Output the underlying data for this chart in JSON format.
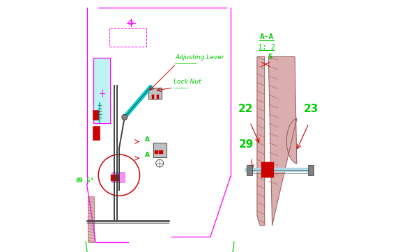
{
  "bg_color": "#ffffff",
  "magenta": "#ff00ff",
  "cyan": "#00cccc",
  "red": "#cc0000",
  "green": "#00cc00",
  "blue_light": "#add8e6",
  "dark_gray": "#404040",
  "medium_gray": "#808080",
  "light_gray": "#c0c0c0",
  "blade_fill": "#d4a0a0",
  "blade_edge": "#884444",
  "hatch_line": "#aa5555",
  "angle_label": "89.5°",
  "label_adjusting_lever": "Adjusting Lever",
  "label_lock_nut": "Lock Nut",
  "label_22": "22",
  "label_23": "23",
  "label_29": "29",
  "gap_label": "5",
  "section_title": "A-A",
  "section_subtitle": "1: 2"
}
